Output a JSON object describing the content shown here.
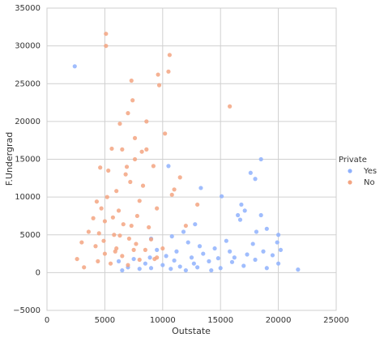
{
  "chart_data": {
    "type": "scatter",
    "xlabel": "Outstate",
    "ylabel": "F.Undergrad",
    "legend_title": "Private",
    "legend": "right",
    "xlim": [
      0,
      25000
    ],
    "xticks": [
      0,
      5000,
      10000,
      15000,
      20000,
      25000
    ],
    "ylim": [
      -5000,
      35000
    ],
    "yticks": [
      {
        "value": -5000,
        "label": "−5000"
      },
      0,
      5000,
      10000,
      15000,
      20000,
      25000,
      30000,
      35000
    ],
    "grid": true,
    "series": [
      {
        "name": "Yes",
        "color": "#8fb1fd",
        "x": [
          21700,
          18500,
          17600,
          18000,
          10500,
          13300,
          15100,
          16700,
          16500,
          17100,
          18500,
          16800,
          19000,
          20000,
          18100,
          19900,
          12800,
          11800,
          10800,
          9000,
          13200,
          14500,
          15800,
          17300,
          19500,
          20200,
          11200,
          12500,
          8900,
          7500,
          6200,
          14000,
          16000,
          18000,
          20000,
          10000,
          11500,
          13000,
          15000,
          17000,
          9000,
          8000,
          7000,
          6500,
          12000,
          14200,
          19000,
          11000,
          13500,
          16200,
          9500,
          12200,
          10300,
          15500,
          17800,
          12700,
          14800,
          10700,
          8500,
          18700,
          2400
        ],
        "values": [
          400,
          15000,
          13200,
          12400,
          14100,
          11200,
          10100,
          7000,
          7600,
          8200,
          7600,
          9000,
          5800,
          5000,
          5400,
          4000,
          6400,
          5400,
          4800,
          4500,
          3500,
          3200,
          2800,
          2400,
          2300,
          3000,
          2800,
          2000,
          2000,
          1800,
          1500,
          1500,
          1400,
          1700,
          1200,
          1000,
          800,
          700,
          600,
          900,
          600,
          500,
          700,
          300,
          300,
          300,
          600,
          1600,
          2500,
          2000,
          3000,
          4000,
          2200,
          4200,
          3800,
          1200,
          1900,
          500,
          1200,
          2800,
          27300
        ]
      },
      {
        "name": "No",
        "color": "#f3a481",
        "x": [
          5100,
          5100,
          10600,
          10500,
          9600,
          7300,
          9700,
          15800,
          7400,
          10200,
          7000,
          6300,
          8600,
          7600,
          5600,
          6500,
          8600,
          8200,
          4600,
          5300,
          6900,
          7600,
          9200,
          11500,
          11000,
          10800,
          7200,
          6000,
          5200,
          4300,
          4700,
          6200,
          8000,
          9500,
          7800,
          4000,
          5000,
          6600,
          8800,
          3600,
          4500,
          5800,
          7100,
          9000,
          3000,
          4200,
          6000,
          7500,
          8500,
          10000,
          5000,
          6500,
          2600,
          4400,
          5500,
          7000,
          8000,
          3200,
          9500,
          12000,
          13000,
          6800,
          8300,
          5700,
          7300,
          4900,
          6300,
          7700,
          5900,
          9300
        ],
        "values": [
          31600,
          30000,
          28800,
          26600,
          26200,
          25400,
          24800,
          22000,
          22800,
          18400,
          21100,
          19700,
          20000,
          17800,
          16400,
          16300,
          16300,
          16000,
          13900,
          13500,
          14000,
          15000,
          14100,
          12600,
          11000,
          10300,
          12000,
          10800,
          10000,
          9400,
          8500,
          8200,
          9500,
          8500,
          7500,
          7200,
          6800,
          6400,
          6000,
          5400,
          5200,
          5000,
          4500,
          4400,
          4000,
          3500,
          3200,
          3000,
          3000,
          3200,
          2500,
          2200,
          1800,
          1500,
          1200,
          1000,
          1700,
          700,
          2000,
          6200,
          9000,
          13000,
          11500,
          7300,
          6200,
          4200,
          4900,
          3800,
          2800,
          1800
        ]
      }
    ]
  }
}
